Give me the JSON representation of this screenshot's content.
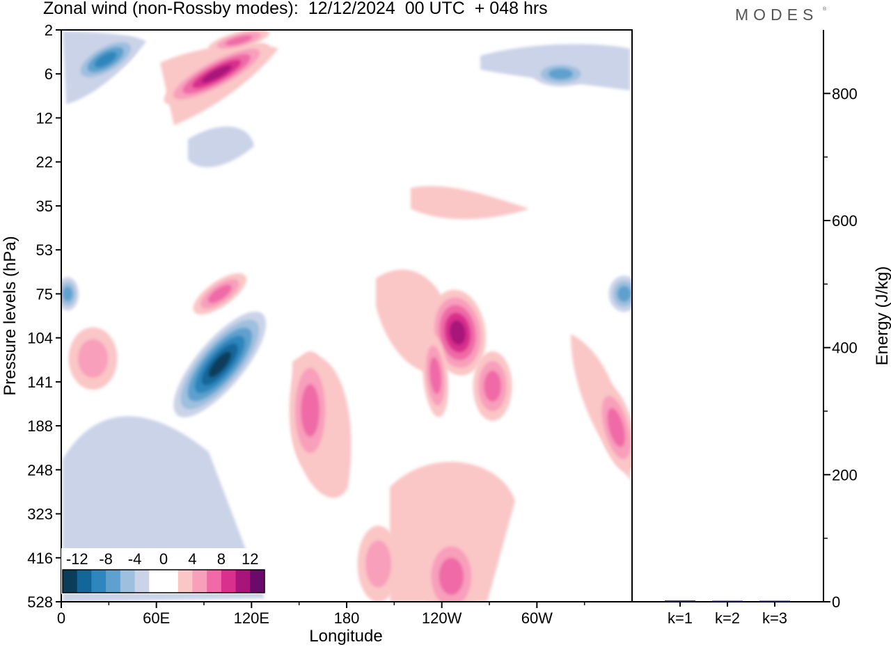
{
  "title": "Zonal wind (non-Rossby modes):  12/12/2024  00 UTC  + 048 hrs",
  "logo": "MODES",
  "logo_mark": "®",
  "chart_data": [
    {
      "type": "heatmap",
      "xlabel": "Longitude",
      "ylabel": "Pressure levels (hPa)",
      "x_ticks": [
        "0",
        "60E",
        "120E",
        "180",
        "120W",
        "60W"
      ],
      "y_ticks": [
        "2",
        "6",
        "12",
        "22",
        "35",
        "53",
        "75",
        "104",
        "141",
        "188",
        "248",
        "323",
        "416",
        "528"
      ],
      "colorbar": {
        "labels": [
          "-12",
          "-8",
          "-4",
          "0",
          "4",
          "8",
          "12"
        ],
        "colors": [
          "#0b3c5a",
          "#12669a",
          "#2d86bd",
          "#5fa1ce",
          "#9ebfde",
          "#cbd3e8",
          "#ffffff",
          "#ffffff",
          "#fac6c6",
          "#f89fbb",
          "#ef6aa6",
          "#d92f8d",
          "#a8157a",
          "#6a0b6a"
        ]
      },
      "features": [
        {
          "lon": 100,
          "level": 120,
          "value": -14
        },
        {
          "lon": 28,
          "level": 4,
          "value": -8
        },
        {
          "lon": 90,
          "level": 6,
          "value": 12
        },
        {
          "lon": 100,
          "level": 2.5,
          "value": 6
        },
        {
          "lon": 248,
          "level": 110,
          "value": 10
        },
        {
          "lon": 240,
          "level": 120,
          "value": 8
        },
        {
          "lon": 158,
          "level": 150,
          "value": 6
        },
        {
          "lon": 272,
          "level": 140,
          "value": 6
        },
        {
          "lon": 245,
          "level": 450,
          "value": 5
        },
        {
          "lon": 348,
          "level": 200,
          "value": 5
        },
        {
          "lon": 360,
          "level": 75,
          "value": -6
        },
        {
          "lon": 0,
          "level": 75,
          "value": -6
        }
      ]
    },
    {
      "type": "bar",
      "categories": [
        "k=1",
        "k=2",
        "k=3"
      ],
      "values": [
        2,
        1,
        1
      ],
      "ylabel": "Energy (J/kg)",
      "y_ticks": [
        "0",
        "200",
        "400",
        "600",
        "800"
      ],
      "ylim": [
        0,
        900
      ],
      "bar_color": "#1a1a50"
    }
  ]
}
